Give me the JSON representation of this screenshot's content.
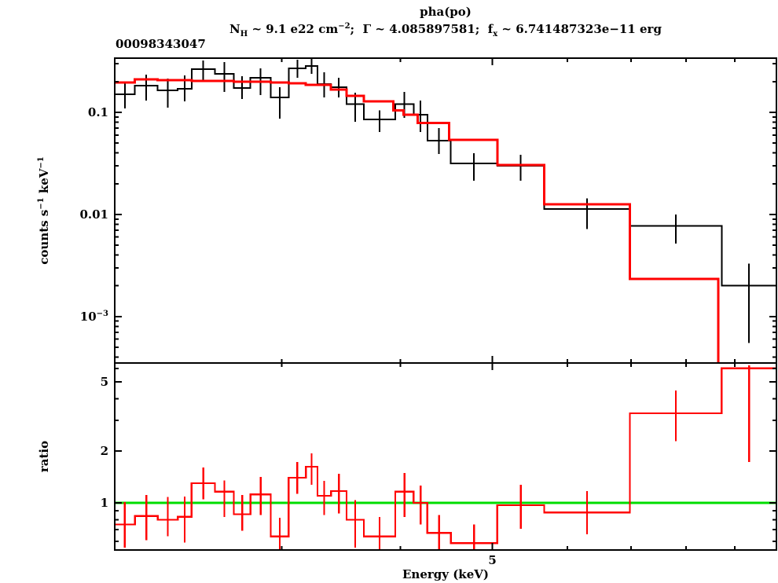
{
  "header": {
    "title": "pha(po)",
    "subtitle_parts": [
      {
        "t": "N"
      },
      {
        "t": "H",
        "sub": true
      },
      {
        "t": " ~ 9.1 e22 cm"
      },
      {
        "t": "−2",
        "sup": true
      },
      {
        "t": ";  Γ ~ 4.085897581;  f"
      },
      {
        "t": "x",
        "sub": true
      },
      {
        "t": " ~ 6.741487323e−11 erg"
      }
    ],
    "obs_id": "00098343047"
  },
  "axes": {
    "x": {
      "label": "Energy (keV)",
      "min": 2.0,
      "max": 9.96,
      "scale": "log",
      "major_ticks": [
        {
          "value": 5,
          "label": "5"
        }
      ],
      "minor_ticks": [
        3,
        4,
        6,
        7,
        8,
        9
      ]
    },
    "y_top": {
      "label_parts": [
        {
          "t": "counts s"
        },
        {
          "t": "−1",
          "sup": true
        },
        {
          "t": " keV"
        },
        {
          "t": "−1",
          "sup": true
        }
      ],
      "min": 0.00035,
      "max": 0.34,
      "scale": "log",
      "major_ticks": [
        {
          "value": 0.1,
          "label_parts": [
            {
              "t": "0.1"
            }
          ]
        },
        {
          "value": 0.01,
          "label_parts": [
            {
              "t": "0.01"
            }
          ]
        },
        {
          "value": 0.001,
          "label_parts": [
            {
              "t": "10"
            },
            {
              "t": "−3",
              "sup": true
            }
          ]
        }
      ],
      "minor_ticks": [
        0.3,
        0.2,
        0.09,
        0.08,
        0.07,
        0.06,
        0.05,
        0.04,
        0.03,
        0.02,
        0.009,
        0.008,
        0.007,
        0.006,
        0.005,
        0.004,
        0.003,
        0.002,
        0.0009,
        0.0008,
        0.0007,
        0.0006,
        0.0005,
        0.0004
      ]
    },
    "y_ratio": {
      "label": "ratio",
      "min": 0.534,
      "max": 6.44,
      "scale": "log",
      "major_ticks": [
        {
          "value": 5,
          "label_parts": [
            {
              "t": "5"
            }
          ]
        },
        {
          "value": 2,
          "label_parts": [
            {
              "t": "2"
            }
          ]
        },
        {
          "value": 1,
          "label_parts": [
            {
              "t": "1"
            }
          ]
        }
      ],
      "minor_ticks": [
        6,
        4,
        3,
        0.9,
        0.8,
        0.7,
        0.6
      ]
    }
  },
  "chart_data": {
    "type": "line",
    "subtype": "stepped-spectrum-with-ratio",
    "colors": {
      "data": "#000000",
      "model": "#ff0000",
      "ratio": "#ff0000",
      "unity_line": "#00dd00"
    },
    "reference_line_ratio": 1.0,
    "bins": [
      {
        "e_lo": 2.0,
        "e_hi": 2.1,
        "counts": 0.15,
        "err_lo": 0.109,
        "err_hi": 0.196,
        "ratio": 0.75,
        "r_lo": 0.55,
        "r_hi": 1.01
      },
      {
        "e_lo": 2.1,
        "e_hi": 2.22,
        "counts": 0.183,
        "err_lo": 0.13,
        "err_hi": 0.234,
        "ratio": 0.84,
        "r_lo": 0.61,
        "r_hi": 1.11
      },
      {
        "e_lo": 2.22,
        "e_hi": 2.33,
        "counts": 0.164,
        "err_lo": 0.111,
        "err_hi": 0.214,
        "ratio": 0.8,
        "r_lo": 0.64,
        "r_hi": 1.08
      },
      {
        "e_lo": 2.33,
        "e_hi": 2.41,
        "counts": 0.17,
        "err_lo": 0.128,
        "err_hi": 0.23,
        "ratio": 0.83,
        "r_lo": 0.59,
        "r_hi": 1.09
      },
      {
        "e_lo": 2.41,
        "e_hi": 2.55,
        "counts": 0.265,
        "err_lo": 0.207,
        "err_hi": 0.322,
        "ratio": 1.3,
        "r_lo": 1.05,
        "r_hi": 1.6
      },
      {
        "e_lo": 2.55,
        "e_hi": 2.67,
        "counts": 0.238,
        "err_lo": 0.158,
        "err_hi": 0.311,
        "ratio": 1.16,
        "r_lo": 0.83,
        "r_hi": 1.35
      },
      {
        "e_lo": 2.67,
        "e_hi": 2.78,
        "counts": 0.173,
        "err_lo": 0.135,
        "err_hi": 0.226,
        "ratio": 0.86,
        "r_lo": 0.69,
        "r_hi": 1.11
      },
      {
        "e_lo": 2.78,
        "e_hi": 2.92,
        "counts": 0.218,
        "err_lo": 0.148,
        "err_hi": 0.27,
        "ratio": 1.12,
        "r_lo": 0.85,
        "r_hi": 1.41
      },
      {
        "e_lo": 2.92,
        "e_hi": 3.05,
        "counts": 0.14,
        "err_lo": 0.087,
        "err_hi": 0.176,
        "ratio": 0.64,
        "r_lo": 0.49,
        "r_hi": 0.82
      },
      {
        "e_lo": 3.05,
        "e_hi": 3.18,
        "counts": 0.27,
        "err_lo": 0.218,
        "err_hi": 0.327,
        "ratio": 1.4,
        "r_lo": 1.13,
        "r_hi": 1.72
      },
      {
        "e_lo": 3.18,
        "e_hi": 3.27,
        "counts": 0.284,
        "err_lo": 0.238,
        "err_hi": 0.333,
        "ratio": 1.62,
        "r_lo": 1.27,
        "r_hi": 1.93
      },
      {
        "e_lo": 3.27,
        "e_hi": 3.38,
        "counts": 0.189,
        "err_lo": 0.14,
        "err_hi": 0.247,
        "ratio": 1.1,
        "r_lo": 0.85,
        "r_hi": 1.34
      },
      {
        "e_lo": 3.38,
        "e_hi": 3.51,
        "counts": 0.176,
        "err_lo": 0.14,
        "err_hi": 0.218,
        "ratio": 1.17,
        "r_lo": 0.87,
        "r_hi": 1.47
      },
      {
        "e_lo": 3.51,
        "e_hi": 3.66,
        "counts": 0.121,
        "err_lo": 0.081,
        "err_hi": 0.156,
        "ratio": 0.8,
        "r_lo": 0.55,
        "r_hi": 1.04
      },
      {
        "e_lo": 3.66,
        "e_hi": 3.95,
        "counts": 0.085,
        "err_lo": 0.064,
        "err_hi": 0.105,
        "ratio": 0.64,
        "r_lo": 0.51,
        "r_hi": 0.83
      },
      {
        "e_lo": 3.95,
        "e_hi": 4.13,
        "counts": 0.121,
        "err_lo": 0.088,
        "err_hi": 0.158,
        "ratio": 1.16,
        "r_lo": 0.83,
        "r_hi": 1.49
      },
      {
        "e_lo": 4.13,
        "e_hi": 4.27,
        "counts": 0.095,
        "err_lo": 0.064,
        "err_hi": 0.13,
        "ratio": 1.0,
        "r_lo": 0.75,
        "r_hi": 1.26
      },
      {
        "e_lo": 4.27,
        "e_hi": 4.52,
        "counts": 0.053,
        "err_lo": 0.039,
        "err_hi": 0.07,
        "ratio": 0.67,
        "r_lo": 0.52,
        "r_hi": 0.85
      },
      {
        "e_lo": 4.52,
        "e_hi": 5.06,
        "counts": 0.0316,
        "err_lo": 0.0214,
        "err_hi": 0.0398,
        "ratio": 0.585,
        "r_lo": 0.52,
        "r_hi": 0.75
      },
      {
        "e_lo": 5.06,
        "e_hi": 5.67,
        "counts": 0.03,
        "err_lo": 0.0214,
        "err_hi": 0.0385,
        "ratio": 0.97,
        "r_lo": 0.71,
        "r_hi": 1.27
      },
      {
        "e_lo": 5.67,
        "e_hi": 6.98,
        "counts": 0.0113,
        "err_lo": 0.0072,
        "err_hi": 0.0143,
        "ratio": 0.88,
        "r_lo": 0.66,
        "r_hi": 1.17
      },
      {
        "e_lo": 6.98,
        "e_hi": 8.72,
        "counts": 0.0077,
        "err_lo": 0.0052,
        "err_hi": 0.01,
        "ratio": 3.3,
        "r_lo": 2.28,
        "r_hi": 4.46
      },
      {
        "e_lo": 8.72,
        "e_hi": 9.96,
        "counts": 0.002,
        "err_lo": 0.00055,
        "err_hi": 0.0033,
        "ratio": 6.0,
        "r_lo": 1.72,
        "r_hi": 6.25
      }
    ],
    "model_steps": [
      {
        "e_lo": 2.0,
        "e_hi": 2.1,
        "value": 0.197
      },
      {
        "e_lo": 2.1,
        "e_hi": 2.22,
        "value": 0.21
      },
      {
        "e_lo": 2.22,
        "e_hi": 2.41,
        "value": 0.207
      },
      {
        "e_lo": 2.41,
        "e_hi": 2.67,
        "value": 0.203
      },
      {
        "e_lo": 2.67,
        "e_hi": 2.92,
        "value": 0.2
      },
      {
        "e_lo": 2.92,
        "e_hi": 3.05,
        "value": 0.196
      },
      {
        "e_lo": 3.05,
        "e_hi": 3.18,
        "value": 0.192
      },
      {
        "e_lo": 3.18,
        "e_hi": 3.38,
        "value": 0.186
      },
      {
        "e_lo": 3.38,
        "e_hi": 3.51,
        "value": 0.168
      },
      {
        "e_lo": 3.51,
        "e_hi": 3.66,
        "value": 0.145
      },
      {
        "e_lo": 3.66,
        "e_hi": 3.93,
        "value": 0.128
      },
      {
        "e_lo": 3.93,
        "e_hi": 4.03,
        "value": 0.105
      },
      {
        "e_lo": 4.03,
        "e_hi": 4.17,
        "value": 0.095
      },
      {
        "e_lo": 4.17,
        "e_hi": 4.5,
        "value": 0.079
      },
      {
        "e_lo": 4.5,
        "e_hi": 5.06,
        "value": 0.0538
      },
      {
        "e_lo": 5.06,
        "e_hi": 5.67,
        "value": 0.0305
      },
      {
        "e_lo": 5.67,
        "e_hi": 6.98,
        "value": 0.0126
      },
      {
        "e_lo": 6.98,
        "e_hi": 8.65,
        "value": 0.00233
      },
      {
        "e_lo": 8.65,
        "e_hi": 9.96,
        "value": 0.0003
      }
    ]
  }
}
